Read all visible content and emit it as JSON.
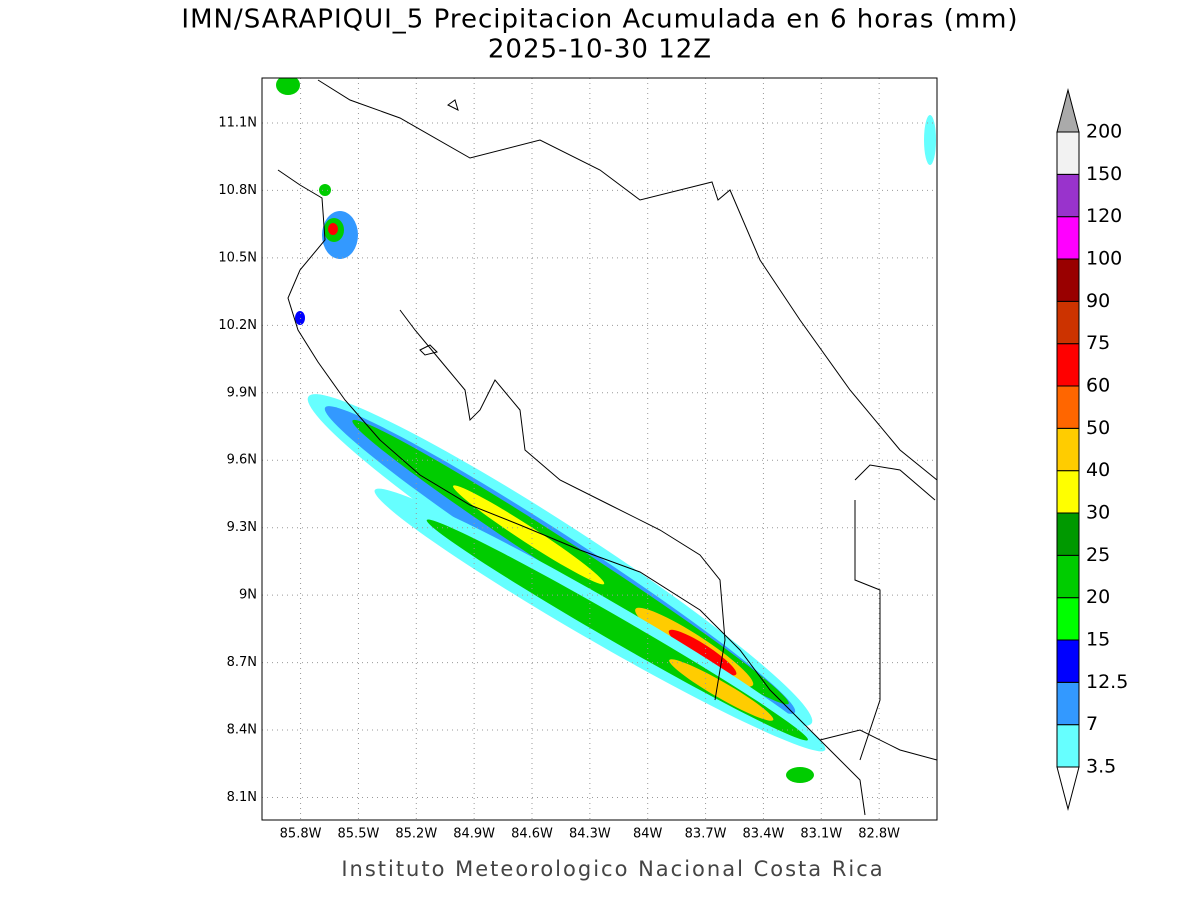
{
  "header": {
    "title": "IMN/SARAPIQUI_5 Precipitacion Acumulada en 6 horas (mm)",
    "subtitle": "2025-10-30 12Z"
  },
  "map": {
    "xlim": [
      -86.0,
      -82.5
    ],
    "ylim": [
      8.0,
      11.3
    ],
    "grid": true,
    "xticks": [
      {
        "value": -85.8,
        "label": "85.8W"
      },
      {
        "value": -85.5,
        "label": "85.5W"
      },
      {
        "value": -85.2,
        "label": "85.2W"
      },
      {
        "value": -84.9,
        "label": "84.9W"
      },
      {
        "value": -84.6,
        "label": "84.6W"
      },
      {
        "value": -84.3,
        "label": "84.3W"
      },
      {
        "value": -84.0,
        "label": "84W"
      },
      {
        "value": -83.7,
        "label": "83.7W"
      },
      {
        "value": -83.4,
        "label": "83.4W"
      },
      {
        "value": -83.1,
        "label": "83.1W"
      },
      {
        "value": -82.8,
        "label": "82.8W"
      }
    ],
    "yticks": [
      {
        "value": 8.1,
        "label": "8.1N"
      },
      {
        "value": 8.4,
        "label": "8.4N"
      },
      {
        "value": 8.7,
        "label": "8.7N"
      },
      {
        "value": 9.0,
        "label": "9N"
      },
      {
        "value": 9.3,
        "label": "9.3N"
      },
      {
        "value": 9.6,
        "label": "9.6N"
      },
      {
        "value": 9.9,
        "label": "9.9N"
      },
      {
        "value": 10.2,
        "label": "10.2N"
      },
      {
        "value": 10.5,
        "label": "10.5N"
      },
      {
        "value": 10.8,
        "label": "10.8N"
      },
      {
        "value": 11.1,
        "label": "11.1N"
      }
    ]
  },
  "colorbar": {
    "levels": [
      3.5,
      7,
      12.5,
      15,
      20,
      25,
      30,
      40,
      50,
      60,
      75,
      90,
      100,
      120,
      150,
      200
    ],
    "colors": [
      "#66ffff",
      "#3399ff",
      "#0000ff",
      "#00ff00",
      "#00cc00",
      "#009900",
      "#ffff00",
      "#ffcc00",
      "#ff6600",
      "#ff0000",
      "#cc3300",
      "#990000",
      "#ff00ff",
      "#9933cc",
      "#f2f2f2"
    ],
    "over_color": "#aaaaaa",
    "under_color": "#ffffff"
  },
  "footer": "Instituto Meteorologico Nacional Costa Rica"
}
